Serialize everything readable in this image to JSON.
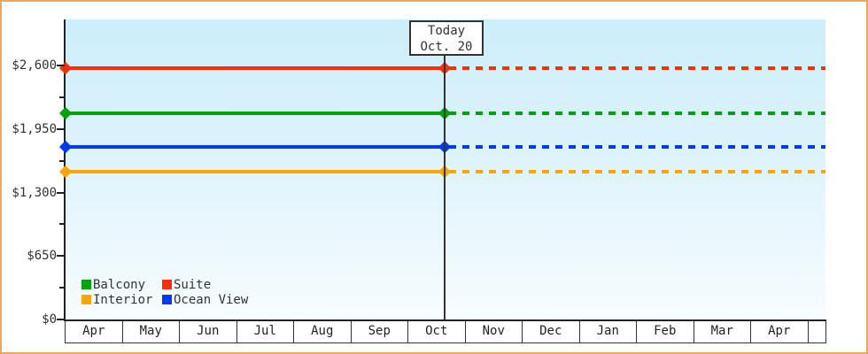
{
  "window": {
    "frame_border_color": "#eaa75e",
    "background_color": "#ffffff"
  },
  "chart_data": {
    "type": "line",
    "title": "",
    "xlabel": "",
    "ylabel": "",
    "x_categories": [
      "Apr",
      "May",
      "Jun",
      "Jul",
      "Aug",
      "Sep",
      "Oct",
      "Nov",
      "Dec",
      "Jan",
      "Feb",
      "Mar",
      "Apr"
    ],
    "y_ticks": [
      {
        "label": "$0",
        "value": 0
      },
      {
        "label": "$650",
        "value": 650
      },
      {
        "label": "$1,300",
        "value": 1300
      },
      {
        "label": "$1,950",
        "value": 1950
      },
      {
        "label": "$2,600",
        "value": 2600
      }
    ],
    "y_minor_ticks": [
      325,
      975,
      1625,
      2275
    ],
    "ylim": [
      0,
      3070
    ],
    "grid": false,
    "plot_background": "light-blue vertical gradient",
    "today": {
      "label_line1": "Today",
      "label_line2": "Oct. 20",
      "month": "Oct",
      "month_index": 6,
      "day": 20,
      "line_style": "solid-before, dashed-after",
      "marker": "diamond"
    },
    "series": [
      {
        "name": "Suite",
        "color": "#f93005",
        "value": 2575
      },
      {
        "name": "Balcony",
        "color": "#00a30b",
        "value": 2110
      },
      {
        "name": "Ocean View",
        "color": "#0339f0",
        "value": 1765
      },
      {
        "name": "Interior",
        "color": "#ffa502",
        "value": 1510
      }
    ],
    "legend": {
      "position": "bottom-left",
      "rows": [
        [
          "Balcony",
          "Suite"
        ],
        [
          "Interior",
          "Ocean View"
        ]
      ]
    }
  }
}
